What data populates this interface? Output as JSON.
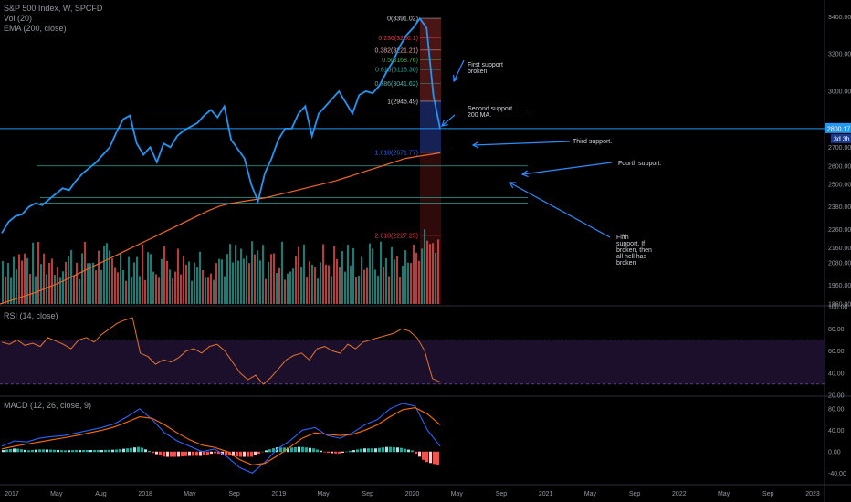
{
  "legend": {
    "symbol": "S&P 500 Index, W, SPCFD",
    "vol": "Vol (20)",
    "ema": "EMA (200, close)",
    "rsi": "RSI (14, close)",
    "macd": "MACD (12, 26, close, 9)"
  },
  "price_badge": {
    "last": "2800.17",
    "countdown": "3d 3h"
  },
  "colors": {
    "price": "#2196f3",
    "ema": "#f26522",
    "support": "#26a69a",
    "vol_up": "#26a69a",
    "vol_down": "#ef5350",
    "rsi_line": "#e5722b",
    "rsi_band": "#1b0f2b",
    "macd_line": "#2962ff",
    "signal_line": "#ff6d00",
    "annot": "#2a8dff"
  },
  "chart_data": [
    {
      "type": "line",
      "title": "S&P 500 Index, W, SPCFD",
      "x_ticks": [
        "2017",
        "May",
        "Aug",
        "2018",
        "May",
        "Sep",
        "2019",
        "May",
        "Sep",
        "2020",
        "May",
        "Sep",
        "2021",
        "May",
        "Sep",
        "2022",
        "May",
        "Sep",
        "2023"
      ],
      "y_ticks": [
        1860,
        1960,
        2080,
        2160,
        2260,
        2380,
        2500,
        2600,
        2700,
        3000,
        3200,
        3400
      ],
      "ylim": [
        1860,
        3460
      ],
      "series": [
        {
          "name": "S&P 500 Index",
          "values": [
            2240,
            2300,
            2330,
            2340,
            2380,
            2400,
            2390,
            2420,
            2450,
            2480,
            2470,
            2520,
            2560,
            2590,
            2620,
            2660,
            2700,
            2780,
            2850,
            2870,
            2720,
            2660,
            2700,
            2620,
            2720,
            2700,
            2760,
            2790,
            2810,
            2830,
            2870,
            2900,
            2860,
            2920,
            2740,
            2690,
            2640,
            2500,
            2410,
            2560,
            2640,
            2740,
            2800,
            2800,
            2880,
            2920,
            2760,
            2880,
            2920,
            2960,
            3000,
            2940,
            2880,
            2980,
            3000,
            2990,
            3030,
            3100,
            3160,
            3240,
            3300,
            3340,
            3390,
            3340,
            2980,
            2800
          ]
        },
        {
          "name": "EMA (200, close)",
          "values": [
            1860,
            1880,
            1900,
            1920,
            1945,
            1970,
            2000,
            2030,
            2060,
            2090,
            2120,
            2150,
            2180,
            2210,
            2240,
            2270,
            2300,
            2330,
            2360,
            2385,
            2400,
            2410,
            2420,
            2430,
            2445,
            2460,
            2475,
            2490,
            2505,
            2520,
            2540,
            2560,
            2580,
            2600,
            2620,
            2640,
            2650,
            2660,
            2670
          ]
        }
      ],
      "support_levels": [
        2900,
        2600,
        2430,
        2400
      ],
      "fib_levels": [
        {
          "label": "0(3391.02)",
          "value": 3391.02
        },
        {
          "label": "0.236(3286.1)",
          "value": 3286.1
        },
        {
          "label": "0.382(3221.21)",
          "value": 3221.21
        },
        {
          "label": "0.5(3168.76)",
          "value": 3168.76
        },
        {
          "label": "0.618(3116.30)",
          "value": 3116.3
        },
        {
          "label": "0.786(3041.62)",
          "value": 3041.62
        },
        {
          "label": "1(2946.49)",
          "value": 2946.49
        },
        {
          "label": "1.618(2671.77)",
          "value": 2671.77
        },
        {
          "label": "2.618(2227.25)",
          "value": 2227.25
        }
      ],
      "annotations": [
        "First support broken",
        "Second support 200 MA.",
        "Third support.",
        "Fourth support.",
        "Fifth support. If broken, then all hell has broken"
      ]
    },
    {
      "type": "line",
      "title": "RSI (14, close)",
      "y_ticks": [
        100,
        80,
        60,
        40,
        20
      ],
      "ylim": [
        20,
        100
      ],
      "bands": [
        70,
        30
      ],
      "series": [
        {
          "name": "RSI",
          "values": [
            68,
            66,
            70,
            65,
            67,
            64,
            72,
            69,
            66,
            62,
            70,
            72,
            68,
            75,
            80,
            85,
            88,
            90,
            58,
            55,
            48,
            52,
            50,
            54,
            60,
            62,
            58,
            64,
            66,
            60,
            50,
            40,
            34,
            38,
            30,
            36,
            44,
            52,
            56,
            58,
            52,
            62,
            64,
            60,
            58,
            66,
            62,
            68,
            70,
            72,
            74,
            76,
            80,
            78,
            72,
            60,
            35,
            32
          ]
        }
      ]
    },
    {
      "type": "line",
      "title": "MACD (12, 26, close, 9)",
      "y_ticks": [
        80,
        40,
        0,
        -40
      ],
      "ylim": [
        -60,
        100
      ],
      "series": [
        {
          "name": "MACD",
          "values": [
            10,
            20,
            18,
            25,
            28,
            30,
            35,
            40,
            45,
            52,
            65,
            80,
            60,
            35,
            20,
            10,
            0,
            5,
            -10,
            -30,
            -40,
            -20,
            5,
            20,
            40,
            45,
            30,
            25,
            35,
            50,
            60,
            80,
            90,
            85,
            40,
            10
          ]
        },
        {
          "name": "Signal",
          "values": [
            5,
            10,
            14,
            18,
            22,
            26,
            30,
            35,
            40,
            46,
            55,
            65,
            62,
            50,
            35,
            22,
            12,
            8,
            0,
            -15,
            -25,
            -22,
            -8,
            8,
            25,
            35,
            32,
            30,
            32,
            40,
            50,
            65,
            78,
            82,
            70,
            50
          ]
        }
      ]
    }
  ]
}
